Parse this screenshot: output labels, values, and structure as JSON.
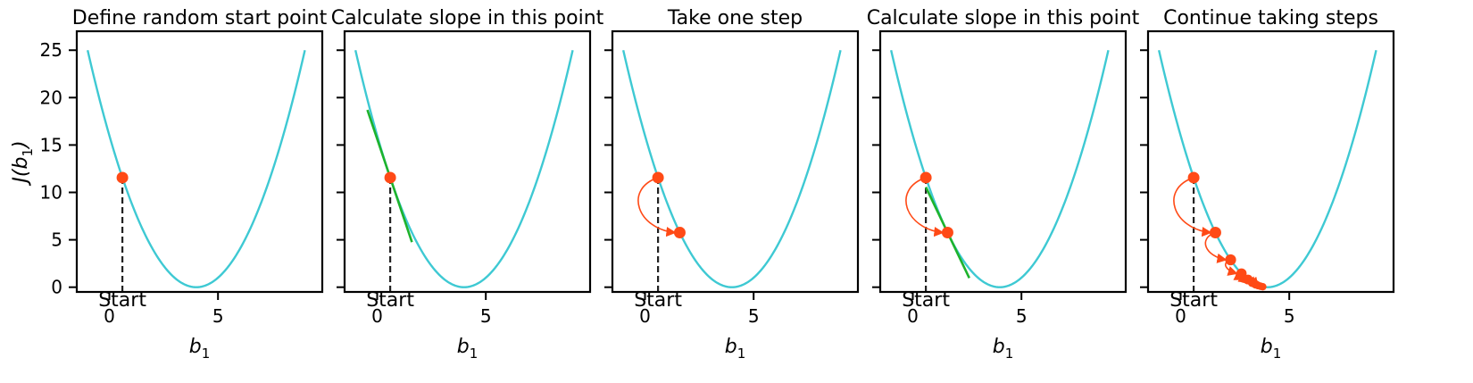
{
  "chart_data": {
    "type": "line",
    "shared": {
      "xlabel": "b",
      "xlabel_sub": "1",
      "ylabel_prefix": "J(b",
      "ylabel_sub": "1",
      "ylabel_suffix": ")",
      "xlim": [
        -1.5,
        9.8
      ],
      "ylim": [
        -0.5,
        27
      ],
      "xticks": [
        0,
        5
      ],
      "yticks": [
        0,
        5,
        10,
        15,
        20,
        25
      ],
      "curve": {
        "x_range": [
          -1,
          9
        ],
        "vertex_x": 4,
        "coeff": 1,
        "comment_free": true
      },
      "start_point": {
        "x": 0.6,
        "y": 11.56
      },
      "start_label": "Start",
      "colors": {
        "curve": "#3ec9d3",
        "point": "#ff4a16",
        "tangent": "#1db32c",
        "dashed": "#222222",
        "arrow": "#ff4a16"
      }
    },
    "panels": [
      {
        "title": "Define random start point",
        "points": [
          {
            "x": 0.6,
            "y": 11.56
          }
        ],
        "tangent": null
      },
      {
        "title": "Calculate slope in this point",
        "points": [
          {
            "x": 0.6,
            "y": 11.56
          }
        ],
        "tangent": {
          "x0": -0.45,
          "x1": 1.6
        }
      },
      {
        "title": "Take one step",
        "points": [
          {
            "x": 0.6,
            "y": 11.56
          },
          {
            "x": 1.6,
            "y": 5.76
          }
        ],
        "tangent": null
      },
      {
        "title": "Calculate slope in this point",
        "points": [
          {
            "x": 0.6,
            "y": 11.56
          },
          {
            "x": 1.6,
            "y": 5.76
          }
        ],
        "tangent": {
          "x0": 0.6,
          "x1": 2.6
        }
      },
      {
        "title": "Continue taking steps",
        "points": [
          {
            "x": 0.6,
            "y": 11.56
          },
          {
            "x": 1.6,
            "y": 5.76
          },
          {
            "x": 2.3,
            "y": 2.89
          },
          {
            "x": 2.8,
            "y": 1.44
          },
          {
            "x": 3.1,
            "y": 0.81
          },
          {
            "x": 3.3,
            "y": 0.49
          },
          {
            "x": 3.45,
            "y": 0.3
          },
          {
            "x": 3.57,
            "y": 0.18
          },
          {
            "x": 3.68,
            "y": 0.1
          },
          {
            "x": 3.78,
            "y": 0.05
          }
        ],
        "tangent": null
      }
    ]
  }
}
